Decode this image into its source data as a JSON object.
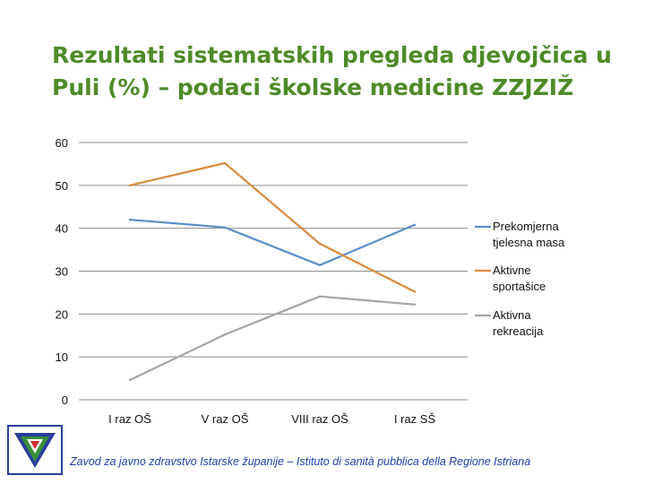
{
  "slide": {
    "title": "Rezultati sistematskih pregleda djevojčica u Puli (%) – podaci školske medicine ZZJZIŽ",
    "footer": "Zavod za javno zdravstvo Istarske županije – Istituto di sanità pubblica della Regione Istriana"
  },
  "chart_data": {
    "type": "line",
    "title": "",
    "xlabel": "",
    "ylabel": "",
    "categories": [
      "I raz OŠ",
      "V raz OŠ",
      "VIII raz OŠ",
      "I raz SŠ"
    ],
    "ylim": [
      0,
      60
    ],
    "yticks": [
      0,
      10,
      20,
      30,
      40,
      50,
      60
    ],
    "grid": true,
    "legend_position": "right",
    "series": [
      {
        "name": "Prekomjerna tjelesna masa",
        "legend_lines": [
          "Prekomjerna",
          "tjelesna masa"
        ],
        "values": [
          42,
          40.2,
          31.4,
          40.8
        ],
        "color": "#5b8fc9"
      },
      {
        "name": "Aktivne sportašice",
        "legend_lines": [
          "Aktivne",
          "sportašice"
        ],
        "values": [
          50,
          55.2,
          36.4,
          25.2
        ],
        "color": "#d98a3e"
      },
      {
        "name": "Aktivna rekreacija",
        "legend_lines": [
          "Aktivna",
          "rekreacija"
        ],
        "values": [
          4.6,
          15.2,
          24.1,
          22.2
        ],
        "color": "#a6a6a6"
      }
    ]
  },
  "colors": {
    "title": "#4e8a28",
    "footer": "#1f3ea8",
    "grid": "#8c8c8c"
  },
  "logo": {
    "icon": "institute-logo-icon"
  }
}
